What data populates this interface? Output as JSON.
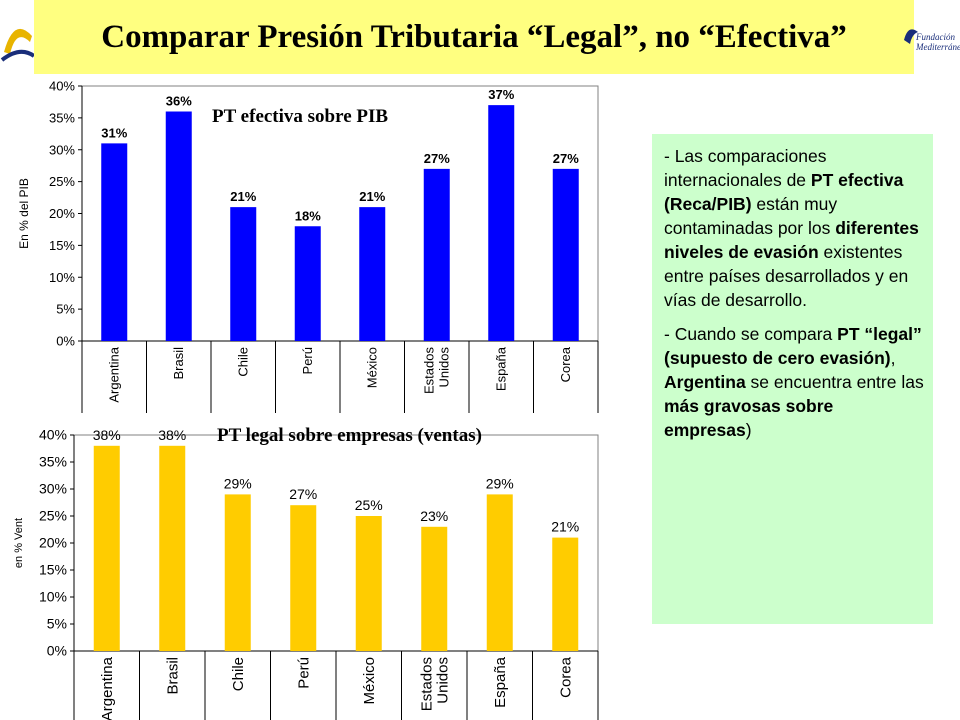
{
  "header": {
    "title": "Comparar Presión Tributaria “Legal”, no “Efectiva”",
    "logo_left_icon": "foundation-logo-fragment",
    "logo_right_text": [
      "Fundación",
      "Mediterránea"
    ],
    "logo_right_icon": "fundacion-mediterranea-logo"
  },
  "colors": {
    "title_bg": "#ffff80",
    "note_bg": "#ccffcc",
    "series1": "#0000ff",
    "series2": "#ffcc00"
  },
  "chart_data": [
    {
      "type": "bar",
      "title": "PT efectiva sobre PIB",
      "xlabel": "",
      "ylabel": "En % del PIB",
      "categories": [
        "Argentina",
        "Brasil",
        "Chile",
        "Perú",
        "México",
        "Estados Unidos",
        "España",
        "Corea"
      ],
      "category_lines": [
        [
          "Argentina"
        ],
        [
          "Brasil"
        ],
        [
          "Chile"
        ],
        [
          "Perú"
        ],
        [
          "México"
        ],
        [
          "Estados",
          "Unidos"
        ],
        [
          "España"
        ],
        [
          "Corea"
        ]
      ],
      "values": [
        31,
        36,
        21,
        18,
        21,
        27,
        37,
        27
      ],
      "data_labels": [
        "31%",
        "36%",
        "21%",
        "18%",
        "21%",
        "27%",
        "37%",
        "27%"
      ],
      "ylim": [
        0,
        40
      ],
      "yticks": [
        "0%",
        "5%",
        "10%",
        "15%",
        "20%",
        "25%",
        "30%",
        "35%",
        "40%"
      ],
      "grid": false,
      "legend": "none"
    },
    {
      "type": "bar",
      "title": "PT legal sobre empresas (ventas)",
      "xlabel": "",
      "ylabel": "en % Vent",
      "categories": [
        "Argentina",
        "Brasil",
        "Chile",
        "Perú",
        "México",
        "Estados Unidos",
        "España",
        "Corea"
      ],
      "category_lines": [
        [
          "Argentina"
        ],
        [
          "Brasil"
        ],
        [
          "Chile"
        ],
        [
          "Perú"
        ],
        [
          "México"
        ],
        [
          "Estados",
          "Unidos"
        ],
        [
          "España"
        ],
        [
          "Corea"
        ]
      ],
      "values": [
        38,
        38,
        29,
        27,
        25,
        23,
        29,
        21
      ],
      "data_labels": [
        "38%",
        "38%",
        "29%",
        "27%",
        "25%",
        "23%",
        "29%",
        "21%"
      ],
      "ylim": [
        0,
        40
      ],
      "yticks": [
        "0%",
        "5%",
        "10%",
        "15%",
        "20%",
        "25%",
        "30%",
        "35%",
        "40%"
      ],
      "grid": false,
      "legend": "none"
    }
  ],
  "note": {
    "p1_segments": [
      {
        "text": "- Las comparaciones internacionales de ",
        "bold": false
      },
      {
        "text": "PT efectiva (Reca/PIB)",
        "bold": true
      },
      {
        "text": " están muy contaminadas por los ",
        "bold": false
      },
      {
        "text": "diferentes niveles de evasión",
        "bold": true
      },
      {
        "text": " existentes entre países desarrollados y en vías de desarrollo.",
        "bold": false
      }
    ],
    "p2_segments": [
      {
        "text": "- Cuando se compara ",
        "bold": false
      },
      {
        "text": "PT “legal” (supuesto de cero evasión)",
        "bold": true
      },
      {
        "text": ", ",
        "bold": false
      },
      {
        "text": "Argentina",
        "bold": true
      },
      {
        "text": " se encuentra entre las ",
        "bold": false
      },
      {
        "text": "más gravosas sobre empresas",
        "bold": true
      },
      {
        "text": ")",
        "bold": false
      }
    ]
  }
}
